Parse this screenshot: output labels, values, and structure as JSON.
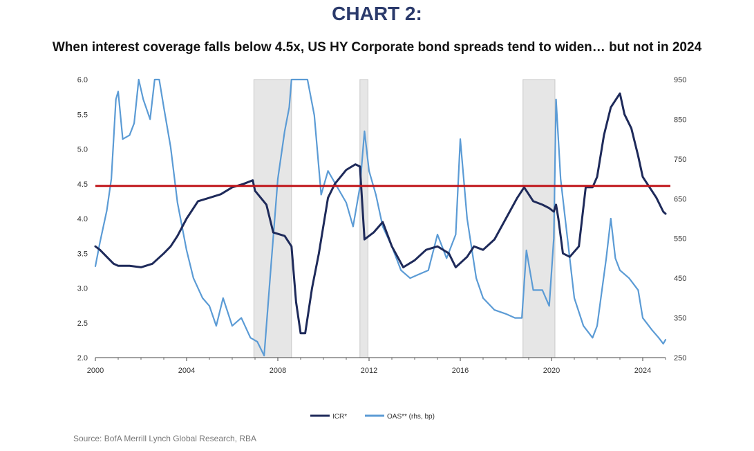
{
  "heading": "CHART 2:",
  "colors": {
    "heading": "#2b3a6b",
    "icr": "#1e2a5a",
    "oas": "#5b9bd5",
    "threshold": "#c0161b",
    "recession": "#e6e6e6"
  },
  "source": "Source: BofA Merrill Lynch Global Research, RBA",
  "chart_data": {
    "type": "line",
    "title": "When interest coverage falls below 4.5x, US HY Corporate bond spreads tend to widen… but not in 2024",
    "xlim": [
      2000,
      2025
    ],
    "ylim": [
      2.0,
      6.0
    ],
    "y2lim": [
      250,
      950
    ],
    "x_ticks": [
      2000,
      2004,
      2008,
      2012,
      2016,
      2020,
      2024
    ],
    "y_ticks": [
      2.0,
      2.5,
      3.0,
      3.5,
      4.0,
      4.5,
      5.0,
      5.5,
      6.0
    ],
    "y2_ticks": [
      250,
      350,
      450,
      550,
      650,
      750,
      850,
      950
    ],
    "y_tick_labels": [
      "2.0",
      "2.5",
      "3.0",
      "3.5",
      "4.0",
      "4.5",
      "5.0",
      "5.5",
      "6.0"
    ],
    "grid": false,
    "legend_position": "bottom",
    "threshold": 4.47,
    "recessions": [
      [
        2006.95,
        2008.6
      ],
      [
        2011.6,
        2011.95
      ],
      [
        2018.75,
        2020.15
      ]
    ],
    "series": [
      {
        "name": "ICR*",
        "axis": "left",
        "points": [
          [
            2000.0,
            3.6
          ],
          [
            2000.2,
            3.55
          ],
          [
            2000.5,
            3.45
          ],
          [
            2000.8,
            3.35
          ],
          [
            2001.0,
            3.32
          ],
          [
            2001.5,
            3.32
          ],
          [
            2002.0,
            3.3
          ],
          [
            2002.5,
            3.35
          ],
          [
            2003.0,
            3.5
          ],
          [
            2003.3,
            3.6
          ],
          [
            2003.6,
            3.75
          ],
          [
            2004.0,
            4.0
          ],
          [
            2004.5,
            4.25
          ],
          [
            2005.0,
            4.3
          ],
          [
            2005.5,
            4.35
          ],
          [
            2006.0,
            4.45
          ],
          [
            2006.5,
            4.5
          ],
          [
            2006.9,
            4.55
          ],
          [
            2007.0,
            4.4
          ],
          [
            2007.5,
            4.2
          ],
          [
            2007.8,
            3.8
          ],
          [
            2008.3,
            3.75
          ],
          [
            2008.6,
            3.6
          ],
          [
            2008.8,
            2.8
          ],
          [
            2009.0,
            2.35
          ],
          [
            2009.2,
            2.35
          ],
          [
            2009.5,
            3.0
          ],
          [
            2009.8,
            3.5
          ],
          [
            2010.2,
            4.3
          ],
          [
            2010.5,
            4.5
          ],
          [
            2011.0,
            4.7
          ],
          [
            2011.4,
            4.78
          ],
          [
            2011.6,
            4.75
          ],
          [
            2011.8,
            3.7
          ],
          [
            2012.2,
            3.8
          ],
          [
            2012.6,
            3.95
          ],
          [
            2013.0,
            3.6
          ],
          [
            2013.5,
            3.3
          ],
          [
            2014.0,
            3.4
          ],
          [
            2014.5,
            3.55
          ],
          [
            2015.0,
            3.6
          ],
          [
            2015.5,
            3.5
          ],
          [
            2015.8,
            3.3
          ],
          [
            2016.3,
            3.45
          ],
          [
            2016.6,
            3.6
          ],
          [
            2017.0,
            3.55
          ],
          [
            2017.5,
            3.7
          ],
          [
            2018.0,
            4.0
          ],
          [
            2018.5,
            4.3
          ],
          [
            2018.8,
            4.45
          ],
          [
            2019.2,
            4.25
          ],
          [
            2019.6,
            4.2
          ],
          [
            2019.9,
            4.15
          ],
          [
            2020.1,
            4.1
          ],
          [
            2020.2,
            4.2
          ],
          [
            2020.3,
            4.0
          ],
          [
            2020.5,
            3.5
          ],
          [
            2020.8,
            3.45
          ],
          [
            2021.2,
            3.6
          ],
          [
            2021.5,
            4.45
          ],
          [
            2021.8,
            4.45
          ],
          [
            2022.0,
            4.6
          ],
          [
            2022.3,
            5.2
          ],
          [
            2022.6,
            5.6
          ],
          [
            2023.0,
            5.8
          ],
          [
            2023.2,
            5.5
          ],
          [
            2023.5,
            5.3
          ],
          [
            2023.8,
            4.9
          ],
          [
            2024.0,
            4.6
          ],
          [
            2024.3,
            4.45
          ],
          [
            2024.6,
            4.3
          ],
          [
            2024.9,
            4.1
          ],
          [
            2025.0,
            4.07
          ]
        ]
      },
      {
        "name": "OAS** (rhs, bp)",
        "axis": "right",
        "points": [
          [
            2000.0,
            480
          ],
          [
            2000.2,
            540
          ],
          [
            2000.5,
            620
          ],
          [
            2000.7,
            700
          ],
          [
            2000.9,
            900
          ],
          [
            2001.0,
            920
          ],
          [
            2001.2,
            800
          ],
          [
            2001.5,
            810
          ],
          [
            2001.7,
            840
          ],
          [
            2001.9,
            960
          ],
          [
            2002.1,
            900
          ],
          [
            2002.4,
            850
          ],
          [
            2002.6,
            960
          ],
          [
            2002.8,
            960
          ],
          [
            2003.0,
            880
          ],
          [
            2003.3,
            780
          ],
          [
            2003.6,
            640
          ],
          [
            2004.0,
            520
          ],
          [
            2004.3,
            450
          ],
          [
            2004.7,
            400
          ],
          [
            2005.0,
            380
          ],
          [
            2005.3,
            330
          ],
          [
            2005.6,
            400
          ],
          [
            2006.0,
            330
          ],
          [
            2006.4,
            350
          ],
          [
            2006.8,
            300
          ],
          [
            2007.1,
            290
          ],
          [
            2007.4,
            255
          ],
          [
            2007.7,
            480
          ],
          [
            2008.0,
            700
          ],
          [
            2008.3,
            820
          ],
          [
            2008.5,
            880
          ],
          [
            2008.6,
            960
          ],
          [
            2009.0,
            960
          ],
          [
            2009.3,
            960
          ],
          [
            2009.6,
            860
          ],
          [
            2009.9,
            660
          ],
          [
            2010.2,
            720
          ],
          [
            2010.6,
            680
          ],
          [
            2011.0,
            640
          ],
          [
            2011.3,
            580
          ],
          [
            2011.6,
            680
          ],
          [
            2011.8,
            820
          ],
          [
            2012.0,
            720
          ],
          [
            2012.3,
            660
          ],
          [
            2012.6,
            580
          ],
          [
            2013.0,
            530
          ],
          [
            2013.4,
            470
          ],
          [
            2013.8,
            450
          ],
          [
            2014.2,
            460
          ],
          [
            2014.6,
            470
          ],
          [
            2015.0,
            560
          ],
          [
            2015.4,
            500
          ],
          [
            2015.8,
            560
          ],
          [
            2016.0,
            800
          ],
          [
            2016.3,
            600
          ],
          [
            2016.7,
            450
          ],
          [
            2017.0,
            400
          ],
          [
            2017.5,
            370
          ],
          [
            2018.0,
            360
          ],
          [
            2018.4,
            350
          ],
          [
            2018.7,
            350
          ],
          [
            2018.9,
            520
          ],
          [
            2019.2,
            420
          ],
          [
            2019.6,
            420
          ],
          [
            2019.9,
            380
          ],
          [
            2020.1,
            550
          ],
          [
            2020.2,
            900
          ],
          [
            2020.4,
            700
          ],
          [
            2020.7,
            550
          ],
          [
            2021.0,
            400
          ],
          [
            2021.4,
            330
          ],
          [
            2021.8,
            300
          ],
          [
            2022.0,
            330
          ],
          [
            2022.4,
            500
          ],
          [
            2022.6,
            600
          ],
          [
            2022.8,
            500
          ],
          [
            2023.0,
            470
          ],
          [
            2023.4,
            450
          ],
          [
            2023.8,
            420
          ],
          [
            2024.0,
            350
          ],
          [
            2024.4,
            320
          ],
          [
            2024.7,
            300
          ],
          [
            2024.9,
            285
          ],
          [
            2025.0,
            295
          ]
        ]
      }
    ]
  }
}
